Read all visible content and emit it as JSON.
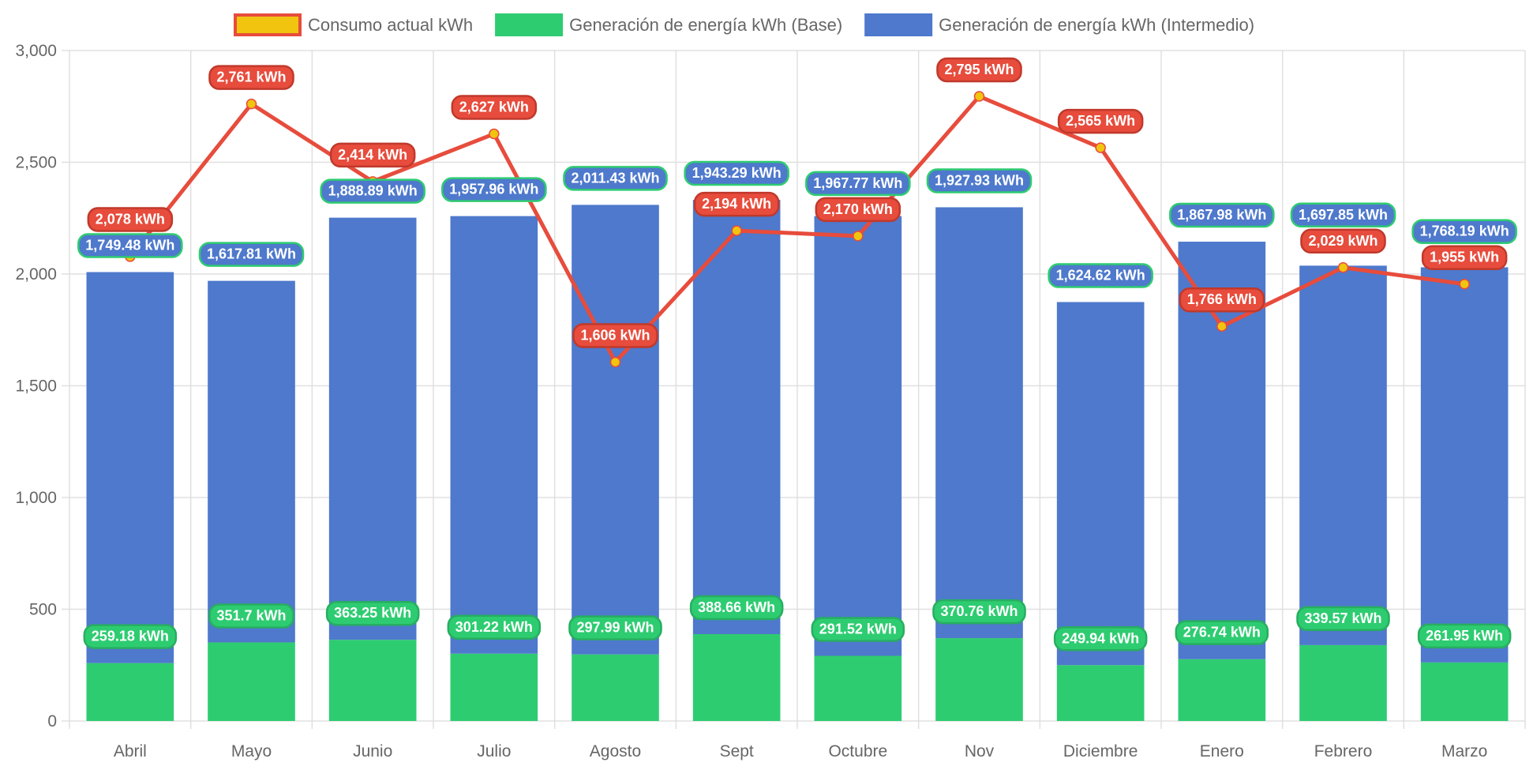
{
  "chart_data": {
    "type": "bar",
    "title": "",
    "xlabel": "",
    "ylabel": "",
    "ylim": [
      0,
      3000
    ],
    "yticks": [
      0,
      500,
      1000,
      1500,
      2000,
      2500,
      3000
    ],
    "grid": true,
    "stacked": true,
    "legend_position": "top",
    "categories": [
      "Abril",
      "Mayo",
      "Junio",
      "Julio",
      "Agosto",
      "Sept",
      "Octubre",
      "Nov",
      "Diciembre",
      "Enero",
      "Febrero",
      "Marzo"
    ],
    "series": [
      {
        "name": "Consumo actual kWh",
        "type": "line",
        "color": "#e74c3c",
        "point_color": "#f1c40f",
        "values": [
          2078,
          2761,
          2414,
          2627,
          1606,
          2194,
          2170,
          2795,
          2565,
          1766,
          2029,
          1955
        ],
        "labels": [
          "2,078 kWh",
          "2,761 kWh",
          "2,414 kWh",
          "2,627 kWh",
          "1,606 kWh",
          "2,194 kWh",
          "2,170 kWh",
          "2,795 kWh",
          "2,565 kWh",
          "1,766 kWh",
          "2,029 kWh",
          "1,955 kWh"
        ]
      },
      {
        "name": "Generación de energía kWh (Base)",
        "type": "bar",
        "color": "#2ecc71",
        "values": [
          259.18,
          351.7,
          363.25,
          301.22,
          297.99,
          388.66,
          291.52,
          370.76,
          249.94,
          276.74,
          339.57,
          261.95
        ],
        "labels": [
          "259.18 kWh",
          "351.7 kWh",
          "363.25 kWh",
          "301.22 kWh",
          "297.99 kWh",
          "388.66 kWh",
          "291.52 kWh",
          "370.76 kWh",
          "249.94 kWh",
          "276.74 kWh",
          "339.57 kWh",
          "261.95 kWh"
        ]
      },
      {
        "name": "Generación de energía kWh (Intermedio)",
        "type": "bar",
        "color": "#4e79cc",
        "values": [
          1749.48,
          1617.81,
          1888.89,
          1957.96,
          2011.43,
          1943.29,
          1967.77,
          1927.93,
          1624.62,
          1867.98,
          1697.85,
          1768.19
        ],
        "labels": [
          "1,749.48 kWh",
          "1,617.81 kWh",
          "1,888.89 kWh",
          "1,957.96 kWh",
          "2,011.43 kWh",
          "1,943.29 kWh",
          "1,967.77 kWh",
          "1,927.93 kWh",
          "1,624.62 kWh",
          "1,867.98 kWh",
          "1,697.85 kWh",
          "1,768.19 kWh"
        ]
      }
    ]
  }
}
